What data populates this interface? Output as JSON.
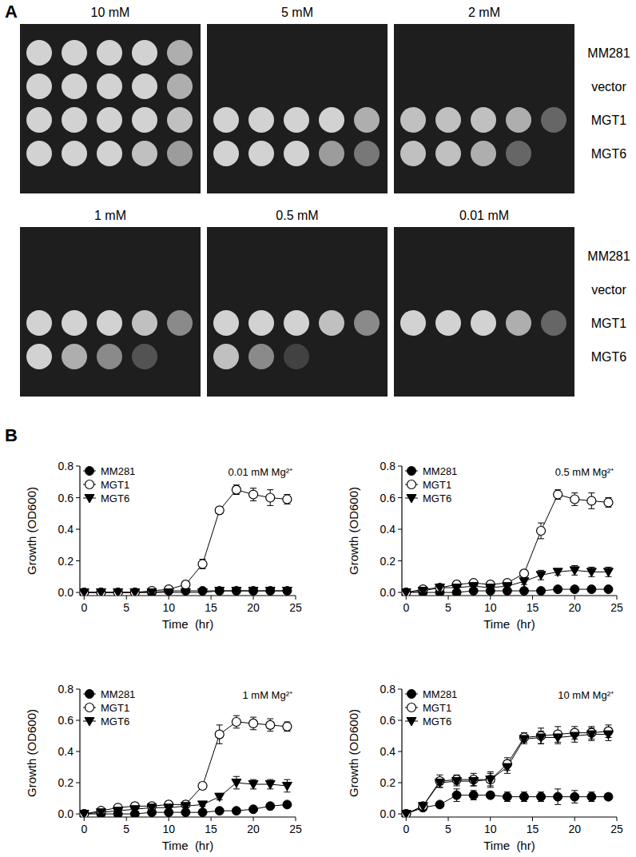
{
  "panel_a": {
    "label": "A",
    "strains": [
      "MM281",
      "vector",
      "MGT1",
      "MGT6"
    ],
    "plates": [
      {
        "label": "10 mM",
        "growth": [
          [
            1,
            1,
            1,
            1,
            0.8
          ],
          [
            1,
            1,
            1,
            1,
            0.8
          ],
          [
            1,
            1,
            1,
            1,
            0.9
          ],
          [
            1,
            1,
            1,
            0.9,
            0.7
          ]
        ]
      },
      {
        "label": "5 mM",
        "growth": [
          [
            0,
            0,
            0,
            0,
            0
          ],
          [
            0,
            0,
            0,
            0,
            0
          ],
          [
            1,
            1,
            1,
            1,
            0.8
          ],
          [
            1,
            1,
            1,
            0.7,
            0.5
          ]
        ]
      },
      {
        "label": "2 mM",
        "growth": [
          [
            0,
            0,
            0,
            0,
            0
          ],
          [
            0,
            0,
            0,
            0,
            0
          ],
          [
            0.9,
            0.9,
            0.9,
            0.8,
            0.4
          ],
          [
            0.9,
            0.9,
            0.8,
            0.4,
            0
          ]
        ]
      },
      {
        "label": "1 mM",
        "growth": [
          [
            0,
            0,
            0,
            0,
            0
          ],
          [
            0,
            0,
            0,
            0,
            0
          ],
          [
            1,
            1,
            1,
            0.9,
            0.6
          ],
          [
            1,
            0.8,
            0.6,
            0.3,
            0
          ]
        ]
      },
      {
        "label": "0.5 mM",
        "growth": [
          [
            0,
            0,
            0,
            0,
            0
          ],
          [
            0,
            0,
            0,
            0,
            0
          ],
          [
            1,
            1,
            1,
            0.9,
            0.6
          ],
          [
            0.9,
            0.6,
            0.2,
            0,
            0
          ]
        ]
      },
      {
        "label": "0.01 mM",
        "growth": [
          [
            0,
            0,
            0,
            0,
            0
          ],
          [
            0,
            0,
            0,
            0,
            0
          ],
          [
            1,
            1,
            1,
            0.8,
            0.4
          ],
          [
            0,
            0,
            0,
            0,
            0
          ]
        ]
      }
    ]
  },
  "panel_b_label": "B",
  "chart_data": [
    {
      "type": "line",
      "title": "0.01 mM Mg²⁺",
      "x_label": "Time  (hr)",
      "y_label": "Growth (OD600)",
      "x": [
        0,
        2,
        4,
        6,
        8,
        10,
        12,
        14,
        16,
        18,
        20,
        22,
        24
      ],
      "xlim": [
        -0.5,
        25
      ],
      "xticks": [
        0,
        5,
        10,
        15,
        20,
        25
      ],
      "ylim": [
        -0.02,
        0.8
      ],
      "yticks": [
        {
          "value": 0,
          "label": "0.0"
        },
        0.2,
        0.4,
        0.6,
        0.8
      ],
      "legend": "upper left",
      "series": [
        {
          "name": "MM281",
          "color": "#000000",
          "marker": "circle",
          "values": [
            0,
            0,
            0,
            0,
            0,
            0.01,
            0.01,
            0.01,
            0.01,
            0.01,
            0.01,
            0.01,
            0.01
          ],
          "errors": [
            0,
            0,
            0,
            0,
            0,
            0,
            0,
            0,
            0,
            0,
            0,
            0,
            0
          ]
        },
        {
          "name": "MGT1",
          "color": "#000000",
          "marker": "circle-open",
          "values": [
            0,
            0,
            0,
            0,
            0.01,
            0.02,
            0.05,
            0.18,
            0.52,
            0.65,
            0.62,
            0.6,
            0.59
          ],
          "errors": [
            0,
            0,
            0,
            0,
            0,
            0,
            0,
            0.03,
            0.02,
            0.03,
            0.04,
            0.05,
            0.03
          ]
        },
        {
          "name": "MGT6",
          "color": "#000000",
          "marker": "triangle-down",
          "values": [
            0,
            0,
            0,
            0,
            0,
            0,
            0,
            0,
            0.01,
            0.01,
            0.01,
            0.01,
            0.01
          ],
          "errors": [
            0,
            0,
            0,
            0,
            0,
            0,
            0,
            0,
            0,
            0,
            0,
            0,
            0
          ]
        }
      ]
    },
    {
      "type": "line",
      "title": "0.5 mM Mg²⁺",
      "x_label": "Time  (hr)",
      "y_label": "Growth (OD600)",
      "x": [
        0,
        2,
        4,
        6,
        8,
        10,
        12,
        14,
        16,
        18,
        20,
        22,
        24
      ],
      "xlim": [
        -0.5,
        25
      ],
      "xticks": [
        0,
        5,
        10,
        15,
        20,
        25
      ],
      "ylim": [
        -0.02,
        0.8
      ],
      "yticks": [
        {
          "value": 0,
          "label": "0.0"
        },
        0.2,
        0.4,
        0.6,
        0.8
      ],
      "legend": "upper left",
      "series": [
        {
          "name": "MM281",
          "color": "#000000",
          "marker": "circle",
          "values": [
            0,
            0,
            0,
            0,
            0.01,
            0.01,
            0.01,
            0.01,
            0.01,
            0.02,
            0.02,
            0.02,
            0.02
          ],
          "errors": [
            0,
            0,
            0,
            0,
            0,
            0,
            0,
            0,
            0,
            0,
            0,
            0,
            0
          ]
        },
        {
          "name": "MGT1",
          "color": "#000000",
          "marker": "circle-open",
          "values": [
            0,
            0.02,
            0.03,
            0.05,
            0.06,
            0.05,
            0.06,
            0.12,
            0.39,
            0.62,
            0.59,
            0.58,
            0.57
          ],
          "errors": [
            0,
            0,
            0,
            0,
            0,
            0,
            0,
            0.02,
            0.05,
            0.03,
            0.04,
            0.05,
            0.03
          ]
        },
        {
          "name": "MGT6",
          "color": "#000000",
          "marker": "triangle-down",
          "values": [
            0,
            0.01,
            0.03,
            0.03,
            0.04,
            0.03,
            0.04,
            0.07,
            0.11,
            0.13,
            0.14,
            0.13,
            0.13
          ],
          "errors": [
            0,
            0,
            0,
            0,
            0,
            0,
            0,
            0.02,
            0.03,
            0.02,
            0.03,
            0.03,
            0.03
          ]
        }
      ]
    },
    {
      "type": "line",
      "title": "1 mM Mg²⁺",
      "x_label": "Time  (hr)",
      "y_label": "Growth (OD600)",
      "x": [
        0,
        2,
        4,
        6,
        8,
        10,
        12,
        14,
        16,
        18,
        20,
        22,
        24
      ],
      "xlim": [
        -0.5,
        25
      ],
      "xticks": [
        0,
        5,
        10,
        15,
        20,
        25
      ],
      "ylim": [
        -0.02,
        0.8
      ],
      "yticks": [
        {
          "value": 0,
          "label": "0.0"
        },
        0.2,
        0.4,
        0.6,
        0.8
      ],
      "legend": "upper left",
      "series": [
        {
          "name": "MM281",
          "color": "#000000",
          "marker": "circle",
          "values": [
            0,
            0,
            0,
            0,
            0.01,
            0.01,
            0.01,
            0.01,
            0.02,
            0.02,
            0.03,
            0.05,
            0.06
          ],
          "errors": [
            0,
            0,
            0,
            0,
            0,
            0,
            0,
            0,
            0,
            0,
            0,
            0,
            0
          ]
        },
        {
          "name": "MGT1",
          "color": "#000000",
          "marker": "circle-open",
          "values": [
            0,
            0.02,
            0.04,
            0.05,
            0.05,
            0.06,
            0.06,
            0.18,
            0.51,
            0.59,
            0.58,
            0.57,
            0.56
          ],
          "errors": [
            0,
            0,
            0,
            0,
            0,
            0,
            0,
            0.02,
            0.06,
            0.04,
            0.04,
            0.04,
            0.03
          ]
        },
        {
          "name": "MGT6",
          "color": "#000000",
          "marker": "triangle-down",
          "values": [
            0,
            0.01,
            0.02,
            0.03,
            0.04,
            0.04,
            0.05,
            0.06,
            0.11,
            0.2,
            0.19,
            0.19,
            0.18
          ],
          "errors": [
            0,
            0,
            0,
            0,
            0,
            0,
            0,
            0.01,
            0.02,
            0.04,
            0.03,
            0.03,
            0.04
          ]
        }
      ]
    },
    {
      "type": "line",
      "title": "10 mM Mg²⁺",
      "x_label": "Time  (hr)",
      "y_label": "Growth (OD600)",
      "x": [
        0,
        2,
        4,
        6,
        8,
        10,
        12,
        14,
        16,
        18,
        20,
        22,
        24
      ],
      "xlim": [
        -0.5,
        25
      ],
      "xticks": [
        0,
        5,
        10,
        15,
        20,
        25
      ],
      "ylim": [
        -0.02,
        0.8
      ],
      "yticks": [
        {
          "value": 0,
          "label": "0.0"
        },
        0.2,
        0.4,
        0.6,
        0.8
      ],
      "legend": "upper left",
      "series": [
        {
          "name": "MM281",
          "color": "#000000",
          "marker": "circle",
          "values": [
            0,
            0.04,
            0.06,
            0.12,
            0.12,
            0.12,
            0.11,
            0.11,
            0.11,
            0.11,
            0.11,
            0.11,
            0.11
          ],
          "errors": [
            0,
            0.01,
            0.01,
            0.04,
            0.03,
            0.02,
            0.03,
            0.03,
            0.03,
            0.05,
            0.04,
            0.03,
            0.02
          ]
        },
        {
          "name": "MGT1",
          "color": "#000000",
          "marker": "circle-open",
          "values": [
            0,
            0.05,
            0.21,
            0.22,
            0.22,
            0.22,
            0.32,
            0.49,
            0.5,
            0.51,
            0.52,
            0.52,
            0.53
          ],
          "errors": [
            0,
            0.02,
            0.04,
            0.03,
            0.04,
            0.05,
            0.04,
            0.03,
            0.05,
            0.05,
            0.04,
            0.04,
            0.04
          ]
        },
        {
          "name": "MGT6",
          "color": "#000000",
          "marker": "triangle-down",
          "values": [
            0,
            0.05,
            0.2,
            0.21,
            0.21,
            0.22,
            0.3,
            0.48,
            0.49,
            0.49,
            0.5,
            0.51,
            0.51
          ],
          "errors": [
            0,
            0.02,
            0.03,
            0.03,
            0.03,
            0.04,
            0.04,
            0.03,
            0.04,
            0.04,
            0.04,
            0.04,
            0.04
          ]
        }
      ]
    }
  ]
}
